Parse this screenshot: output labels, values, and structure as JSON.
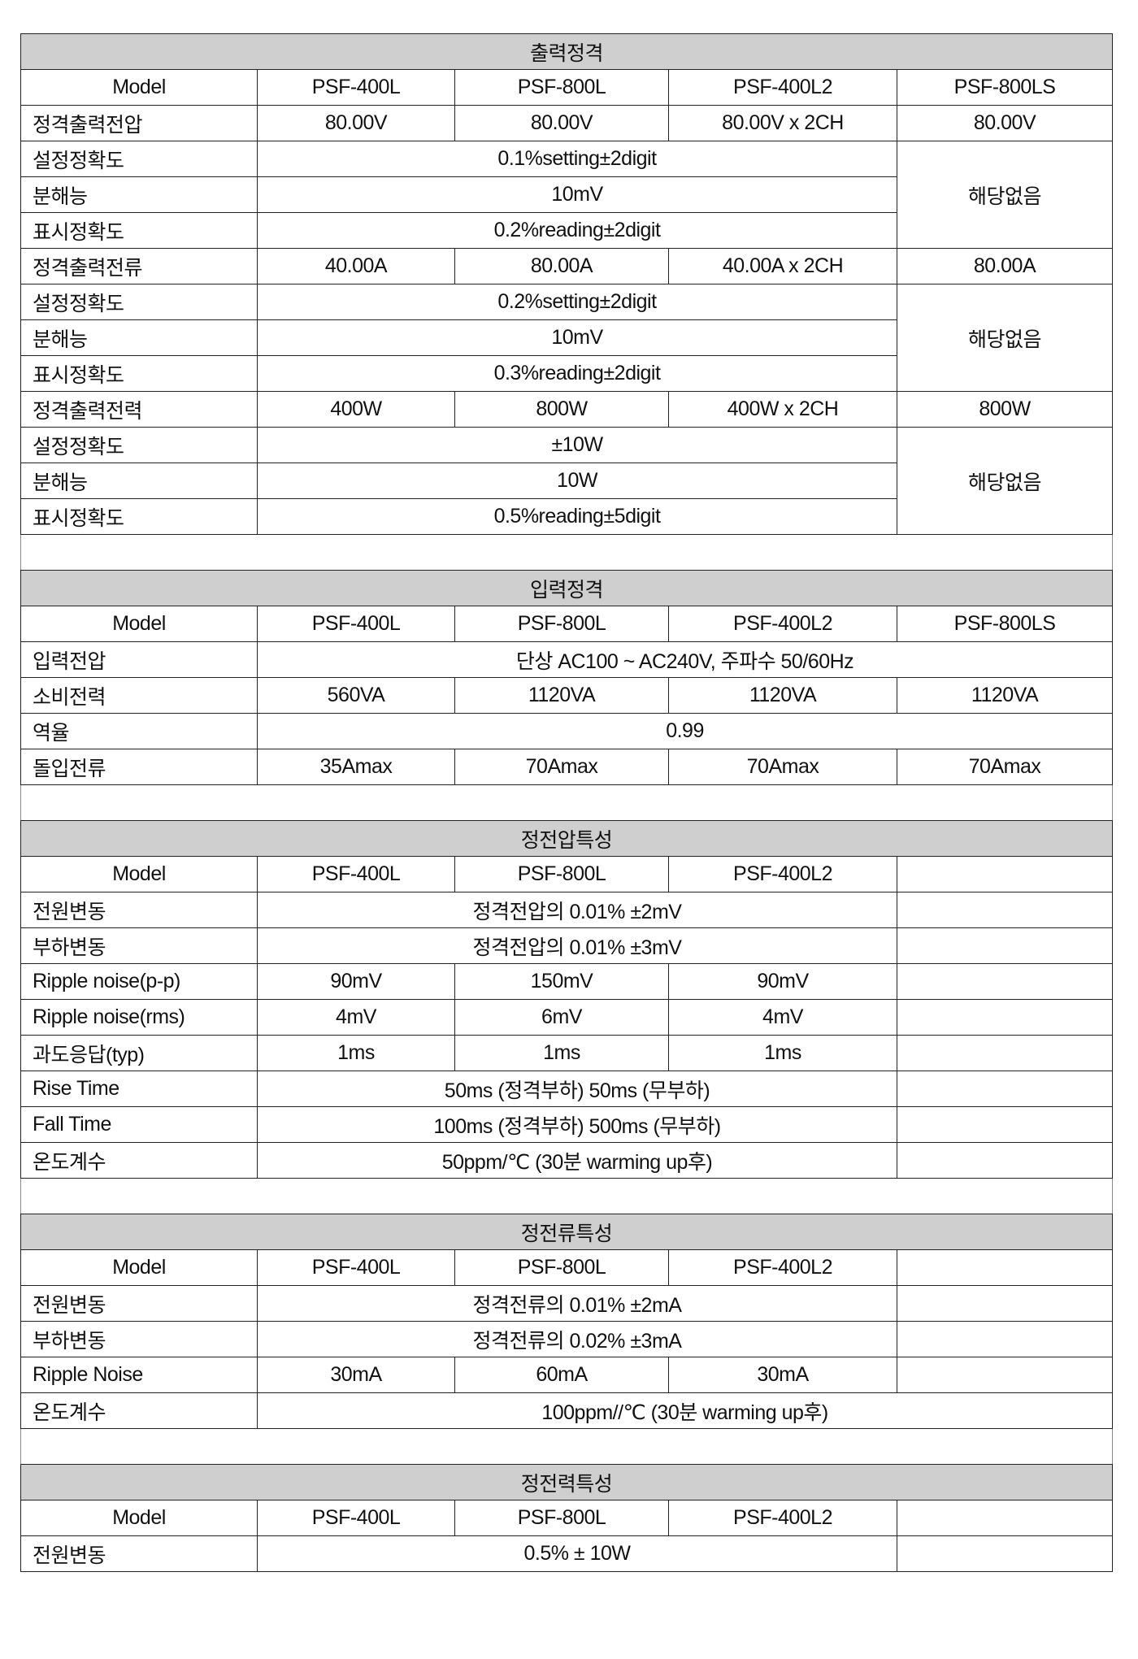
{
  "sections": [
    {
      "title": "출력정격",
      "header": [
        "Model",
        "PSF-400L",
        "PSF-800L",
        "PSF-400L2",
        "PSF-800LS"
      ],
      "rows": [
        [
          {
            "t": "정격출력전압"
          },
          {
            "t": "80.00V"
          },
          {
            "t": "80.00V"
          },
          {
            "t": "80.00V x 2CH"
          },
          {
            "t": "80.00V"
          }
        ],
        [
          {
            "t": "설정정확도"
          },
          {
            "t": "0.1%setting±2digit",
            "cs": 3
          },
          {
            "t": "해당없음",
            "rs": 3
          }
        ],
        [
          {
            "t": "분해능"
          },
          {
            "t": "10mV",
            "cs": 3
          }
        ],
        [
          {
            "t": "표시정확도"
          },
          {
            "t": "0.2%reading±2digit",
            "cs": 3
          }
        ],
        [
          {
            "t": "정격출력전류"
          },
          {
            "t": "40.00A"
          },
          {
            "t": "80.00A"
          },
          {
            "t": "40.00A x 2CH"
          },
          {
            "t": "80.00A"
          }
        ],
        [
          {
            "t": "설정정확도"
          },
          {
            "t": "0.2%setting±2digit",
            "cs": 3
          },
          {
            "t": "해당없음",
            "rs": 3
          }
        ],
        [
          {
            "t": "분해능"
          },
          {
            "t": "10mV",
            "cs": 3
          }
        ],
        [
          {
            "t": "표시정확도"
          },
          {
            "t": "0.3%reading±2digit",
            "cs": 3
          }
        ],
        [
          {
            "t": "정격출력전력"
          },
          {
            "t": "400W"
          },
          {
            "t": "800W"
          },
          {
            "t": "400W x 2CH"
          },
          {
            "t": "800W"
          }
        ],
        [
          {
            "t": "설정정확도"
          },
          {
            "t": "±10W",
            "cs": 3
          },
          {
            "t": "해당없음",
            "rs": 3
          }
        ],
        [
          {
            "t": "분해능"
          },
          {
            "t": "10W",
            "cs": 3
          }
        ],
        [
          {
            "t": "표시정확도"
          },
          {
            "t": "0.5%reading±5digit",
            "cs": 3
          }
        ]
      ]
    },
    {
      "title": "입력정격",
      "header": [
        "Model",
        "PSF-400L",
        "PSF-800L",
        "PSF-400L2",
        "PSF-800LS"
      ],
      "rows": [
        [
          {
            "t": "입력전압"
          },
          {
            "t": "단상 AC100 ~ AC240V, 주파수 50/60Hz",
            "cs": 4
          }
        ],
        [
          {
            "t": "소비전력"
          },
          {
            "t": "560VA"
          },
          {
            "t": "1120VA"
          },
          {
            "t": "1120VA"
          },
          {
            "t": "1120VA"
          }
        ],
        [
          {
            "t": "역율"
          },
          {
            "t": "0.99",
            "cs": 4
          }
        ],
        [
          {
            "t": "돌입전류"
          },
          {
            "t": "35Amax"
          },
          {
            "t": "70Amax"
          },
          {
            "t": "70Amax"
          },
          {
            "t": "70Amax"
          }
        ]
      ]
    },
    {
      "title": "정전압특성",
      "header": [
        "Model",
        "PSF-400L",
        "PSF-800L",
        "PSF-400L2",
        ""
      ],
      "rows": [
        [
          {
            "t": "전원변동"
          },
          {
            "t": "정격전압의 0.01% ±2mV",
            "cs": 3
          },
          {
            "t": ""
          }
        ],
        [
          {
            "t": "부하변동"
          },
          {
            "t": "정격전압의 0.01% ±3mV",
            "cs": 3
          },
          {
            "t": ""
          }
        ],
        [
          {
            "t": "Ripple noise(p-p)"
          },
          {
            "t": "90mV"
          },
          {
            "t": "150mV"
          },
          {
            "t": "90mV"
          },
          {
            "t": ""
          }
        ],
        [
          {
            "t": "Ripple noise(rms)"
          },
          {
            "t": "4mV"
          },
          {
            "t": "6mV"
          },
          {
            "t": "4mV"
          },
          {
            "t": ""
          }
        ],
        [
          {
            "t": "과도응답(typ)"
          },
          {
            "t": "1ms"
          },
          {
            "t": "1ms"
          },
          {
            "t": "1ms"
          },
          {
            "t": ""
          }
        ],
        [
          {
            "t": "Rise Time"
          },
          {
            "t": "50ms (정격부하)   50ms (무부하)",
            "cs": 3
          },
          {
            "t": ""
          }
        ],
        [
          {
            "t": "Fall Time"
          },
          {
            "t": "100ms (정격부하)   500ms (무부하)",
            "cs": 3
          },
          {
            "t": ""
          }
        ],
        [
          {
            "t": "온도계수"
          },
          {
            "t": "50ppm/℃ (30분 warming up후)",
            "cs": 3
          },
          {
            "t": ""
          }
        ]
      ]
    },
    {
      "title": "정전류특성",
      "header": [
        "Model",
        "PSF-400L",
        "PSF-800L",
        "PSF-400L2",
        ""
      ],
      "rows": [
        [
          {
            "t": "전원변동"
          },
          {
            "t": "정격전류의 0.01% ±2mA",
            "cs": 3
          },
          {
            "t": ""
          }
        ],
        [
          {
            "t": "부하변동"
          },
          {
            "t": "정격전류의 0.02% ±3mA",
            "cs": 3
          },
          {
            "t": ""
          }
        ],
        [
          {
            "t": "Ripple Noise"
          },
          {
            "t": "30mA"
          },
          {
            "t": "60mA"
          },
          {
            "t": "30mA"
          },
          {
            "t": ""
          }
        ],
        [
          {
            "t": "온도계수"
          },
          {
            "t": "100ppm//℃ (30분 warming up후)",
            "cs": 4
          }
        ]
      ]
    },
    {
      "title": "정전력특성",
      "header": [
        "Model",
        "PSF-400L",
        "PSF-800L",
        "PSF-400L2",
        ""
      ],
      "rows": [
        [
          {
            "t": "전원변동"
          },
          {
            "t": "0.5% ± 10W",
            "cs": 3
          },
          {
            "t": ""
          }
        ]
      ]
    }
  ]
}
